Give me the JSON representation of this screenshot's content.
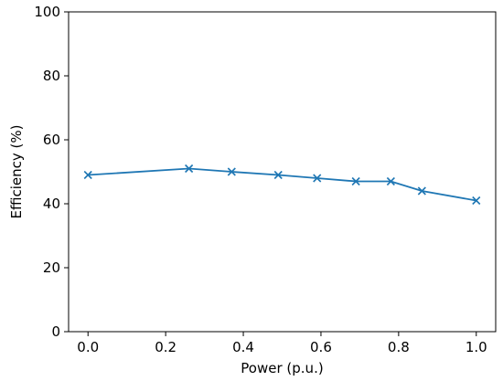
{
  "chart_data": {
    "type": "line",
    "title": "",
    "xlabel": "Power (p.u.)",
    "ylabel": "Efficiency (%)",
    "xlim": [
      -0.05,
      1.05
    ],
    "ylim": [
      0,
      100
    ],
    "xticks": [
      "0.0",
      "0.2",
      "0.4",
      "0.6",
      "0.8",
      "1.0"
    ],
    "yticks": [
      "0",
      "20",
      "40",
      "60",
      "80",
      "100"
    ],
    "grid": false,
    "legend": "none",
    "series": [
      {
        "color": "#1f77b4",
        "marker": "x",
        "x": [
          0.0,
          0.26,
          0.37,
          0.49,
          0.59,
          0.69,
          0.78,
          0.86,
          1.0
        ],
        "y": [
          49,
          51,
          50,
          49,
          48,
          47,
          47,
          44,
          41
        ]
      }
    ]
  }
}
